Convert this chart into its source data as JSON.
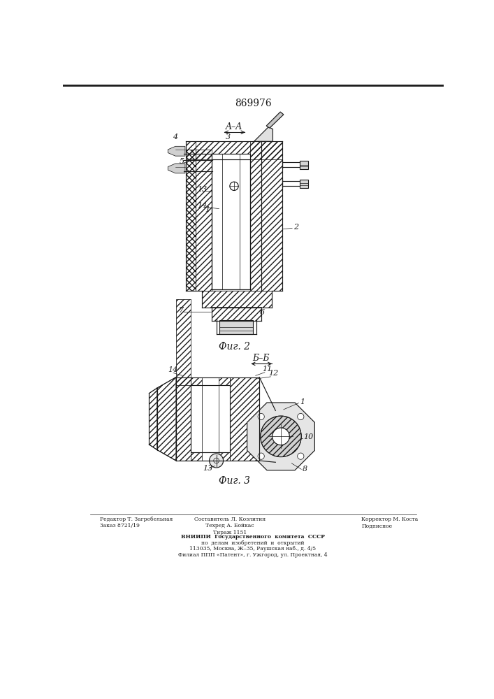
{
  "patent_number": "869976",
  "fig2_label": "Фиг. 2",
  "fig3_label": "Фиг. 3",
  "section_AA": "A–A",
  "section_BB": "Б–Б",
  "footer_left": [
    "Редактор Т. Загребельная",
    "Заказ 8721/19"
  ],
  "footer_center": [
    "Составитель Л. Козлитин",
    "Техред А. Бойкас",
    "Тираж 1151"
  ],
  "footer_right": [
    "Корректор М. Коста",
    "Подписное"
  ],
  "vniiipi_lines": [
    "ВНИИПИ  Государственного  комитета  СССР",
    "по  делам  изобретений  и  открытий",
    "113035, Москва, Ж–35, Раушская наб., д. 4/5",
    "Филиал ППП «Патент», г. Ужгород, ул. Проектная, 4"
  ],
  "line_color": "#1a1a1a",
  "bg_color": "#ffffff"
}
